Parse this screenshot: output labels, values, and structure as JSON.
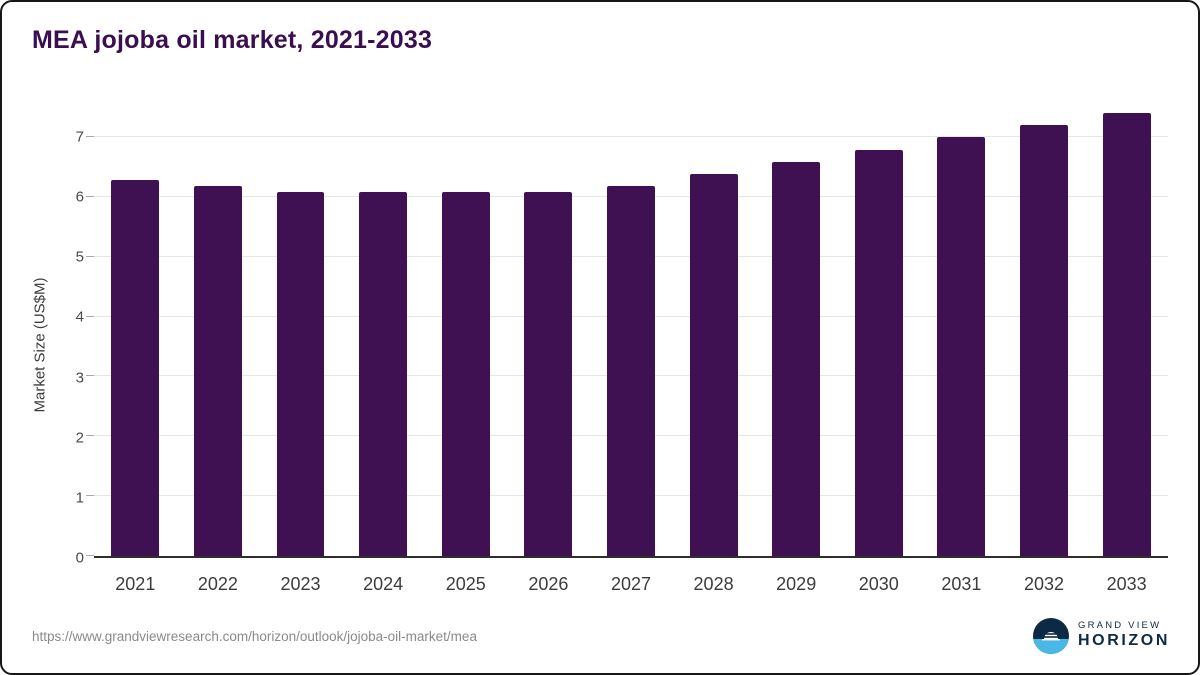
{
  "title": "MEA jojoba oil market, 2021-2033",
  "footer": {
    "source_url": "https://www.grandviewresearch.com/horizon/outlook/jojoba-oil-market/mea",
    "brand_top": "GRAND VIEW",
    "brand_bottom": "HORIZON"
  },
  "colors": {
    "bar": "#3F1152",
    "title": "#3A0F4F",
    "axis": "#2E2E2E",
    "grid": "#E6E6E6",
    "brand_navy": "#0C2A43",
    "brand_blue": "#49B8E6"
  },
  "chart_data": {
    "type": "bar",
    "title": "MEA jojoba oil market, 2021-2033",
    "categories": [
      "2021",
      "2022",
      "2023",
      "2024",
      "2025",
      "2026",
      "2027",
      "2028",
      "2029",
      "2030",
      "2031",
      "2032",
      "2033"
    ],
    "values": [
      6.28,
      6.18,
      6.08,
      6.08,
      6.08,
      6.08,
      6.18,
      6.38,
      6.58,
      6.78,
      7.0,
      7.2,
      7.4
    ],
    "xlabel": "",
    "ylabel": "Market Size (US$M)",
    "yticks": [
      0,
      1,
      2,
      3,
      4,
      5,
      6,
      7
    ],
    "ylim": [
      0,
      7.5
    ],
    "grid": "horizontal",
    "legend": "none",
    "bar_color": "#3F1152"
  }
}
